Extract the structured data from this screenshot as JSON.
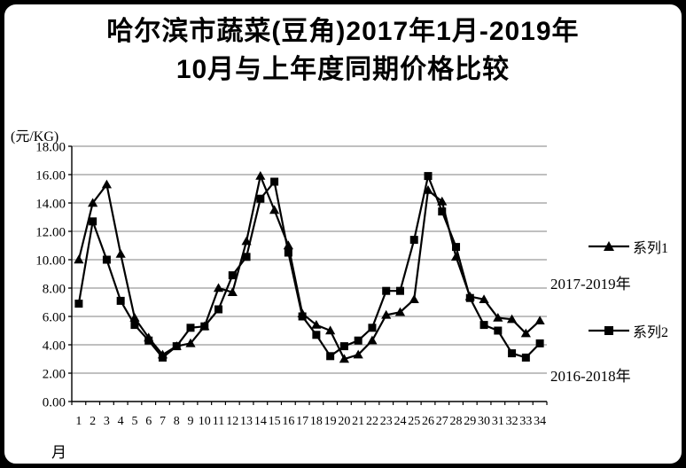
{
  "title": {
    "line1": "哈尔滨市蔬菜(豆角)2017年1月-2019年",
    "line2": "10月与上年度同期价格比较"
  },
  "chart_data": {
    "type": "line",
    "title": "哈尔滨市蔬菜(豆角)2017年1月-2019年10月与上年度同期价格比较",
    "y_unit_label": "(元/KG)",
    "x_axis_label": "月",
    "ylim": [
      0,
      18
    ],
    "y_tick_step": 2,
    "y_tick_labels": [
      "18.00",
      "16.00",
      "14.00",
      "12.00",
      "10.00",
      "8.00",
      "6.00",
      "4.00",
      "2.00",
      "0.00"
    ],
    "categories": [
      "1",
      "2",
      "3",
      "4",
      "5",
      "6",
      "7",
      "8",
      "9",
      "10",
      "11",
      "12",
      "13",
      "14",
      "15",
      "16",
      "17",
      "18",
      "19",
      "20",
      "21",
      "22",
      "23",
      "24",
      "25",
      "26",
      "27",
      "28",
      "29",
      "30",
      "31",
      "32",
      "33",
      "34"
    ],
    "grid": true,
    "grid_color": "#808080",
    "axis_color": "#000000",
    "color": "#000000",
    "legend_position": "right",
    "series": [
      {
        "name": "系列1",
        "marker": "triangle",
        "annotation": "2017-2019年",
        "values": [
          10.0,
          14.0,
          15.3,
          10.4,
          5.9,
          4.5,
          3.3,
          3.9,
          4.1,
          5.3,
          8.0,
          7.7,
          11.3,
          15.9,
          13.5,
          11.0,
          6.2,
          5.4,
          5.0,
          3.0,
          3.3,
          4.3,
          6.1,
          6.3,
          7.2,
          14.9,
          14.1,
          10.2,
          7.4,
          7.2,
          5.9,
          5.8,
          4.8,
          5.7
        ]
      },
      {
        "name": "系列2",
        "marker": "square",
        "annotation": "2016-2018年",
        "values": [
          6.9,
          12.7,
          10.0,
          7.1,
          5.4,
          4.3,
          3.1,
          3.9,
          5.2,
          5.3,
          6.5,
          8.9,
          10.2,
          14.3,
          15.5,
          10.5,
          6.0,
          4.7,
          3.2,
          3.9,
          4.3,
          5.2,
          7.8,
          7.8,
          11.4,
          15.9,
          13.4,
          10.9,
          7.3,
          5.4,
          5.0,
          3.4,
          3.1,
          4.1
        ]
      }
    ]
  }
}
